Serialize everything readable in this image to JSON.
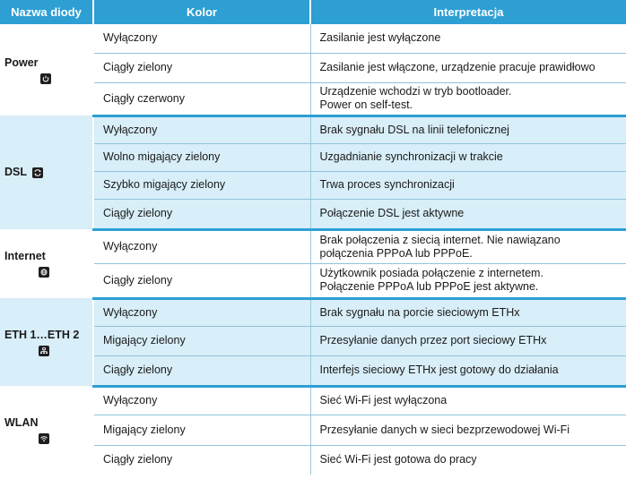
{
  "headers": [
    "Nazwa diody",
    "Kolor",
    "Interpretacja"
  ],
  "groups": [
    {
      "name": "Power",
      "icon": "power-icon",
      "rows": [
        {
          "kolor": "Wyłączony",
          "interp": [
            "Zasilanie jest wyłączone"
          ]
        },
        {
          "kolor": "Ciągły zielony",
          "interp": [
            "Zasilanie jest włączone, urządzenie pracuje prawidłowo"
          ]
        },
        {
          "kolor": "Ciągły czerwony",
          "interp": [
            "Urządzenie wchodzi w tryb bootloader.",
            "Power on self-test."
          ]
        }
      ]
    },
    {
      "name": "DSL",
      "icon": "dsl-sync-icon",
      "rows": [
        {
          "kolor": "Wyłączony",
          "interp": [
            "Brak sygnału DSL na linii telefonicznej"
          ]
        },
        {
          "kolor": "Wolno migający zielony",
          "interp": [
            "Uzgadnianie synchronizacji w trakcie"
          ]
        },
        {
          "kolor": "Szybko migający zielony",
          "interp": [
            "Trwa proces synchronizacji"
          ]
        },
        {
          "kolor": "Ciągły zielony",
          "interp": [
            "Połączenie DSL jest aktywne"
          ]
        }
      ]
    },
    {
      "name": "Internet",
      "icon": "internet-globe-icon",
      "rows": [
        {
          "kolor": "Wyłączony",
          "interp": [
            "Brak połączenia z siecią internet. Nie nawiązano",
            "połączenia PPPoA lub PPPoE."
          ]
        },
        {
          "kolor": "Ciągły zielony",
          "interp": [
            "Użytkownik posiada połączenie z internetem.",
            "Połączenie PPPoA lub PPPoE jest aktywne."
          ]
        }
      ]
    },
    {
      "name": "ETH 1…ETH 2",
      "icon": "ethernet-icon",
      "rows": [
        {
          "kolor": "Wyłączony",
          "interp": [
            "Brak sygnału na porcie sieciowym ETHx"
          ]
        },
        {
          "kolor": "Migający zielony",
          "interp": [
            "Przesyłanie danych przez port sieciowy ETHx"
          ]
        },
        {
          "kolor": "Ciągły zielony",
          "interp": [
            "Interfejs sieciowy ETHx jest gotowy do działania"
          ]
        }
      ]
    },
    {
      "name": "WLAN",
      "icon": "wifi-icon",
      "rows": [
        {
          "kolor": "Wyłączony",
          "interp": [
            "Sieć Wi-Fi jest wyłączona"
          ]
        },
        {
          "kolor": "Migający zielony",
          "interp": [
            "Przesyłanie danych w sieci bezprzewodowej Wi-Fi"
          ]
        },
        {
          "kolor": "Ciągły zielony",
          "interp": [
            "Sieć Wi-Fi jest gotowa do pracy"
          ]
        }
      ]
    }
  ]
}
